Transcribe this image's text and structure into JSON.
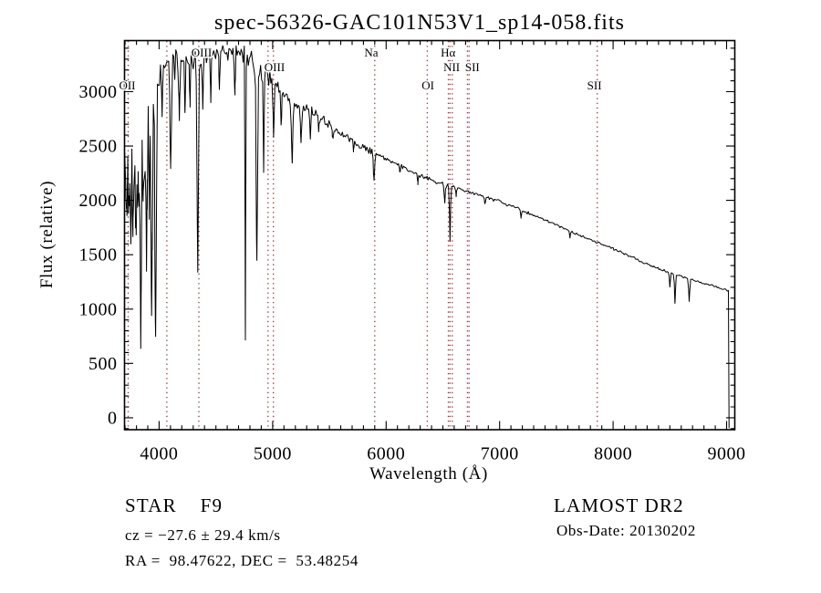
{
  "title": "spec-56326-GAC101N53V1_sp14-058.fits",
  "annotations": {
    "class_label": "STAR    F9",
    "cz": "cz = −27.6 ± 29.4 km/s",
    "radec": "RA =  98.47622, DEC =  53.48254",
    "survey": "LAMOST DR2",
    "obs_date": "Obs-Date: 20130202"
  },
  "chart_data": {
    "type": "line",
    "title": "spec-56326-GAC101N53V1_sp14-058.fits",
    "xlabel": "Wavelength (Å)",
    "ylabel": "Flux (relative)",
    "xlim": [
      3695,
      9072
    ],
    "ylim": [
      -110,
      3470
    ],
    "x_ticks": [
      4000,
      5000,
      6000,
      7000,
      8000,
      9000
    ],
    "y_ticks": [
      0,
      500,
      1000,
      1500,
      2000,
      2500,
      3000
    ],
    "x_minor_step": 100,
    "y_minor_step": 100,
    "grid": false,
    "line_color": "#000000",
    "marker_line_color": "#943232",
    "spectral_lines": [
      {
        "label": "OII",
        "row": 3,
        "wavelengths": [
          3727
        ],
        "label_at": 3719
      },
      {
        "label": "",
        "row": 0,
        "wavelengths": [
          4068
        ],
        "label_at": 4068
      },
      {
        "label": "OIII",
        "row": 1,
        "wavelengths": [
          4350
        ],
        "label_at": 4374
      },
      {
        "label": "OIII",
        "row": 2,
        "wavelengths": [
          4959,
          5007
        ],
        "label_at": 5017
      },
      {
        "label": "Na",
        "row": 1,
        "wavelengths": [
          5900
        ],
        "label_at": 5869
      },
      {
        "label": "OI",
        "row": 3,
        "wavelengths": [
          6363
        ],
        "label_at": 6368
      },
      {
        "label": "Hα",
        "row": 1,
        "wavelengths": [
          6563
        ],
        "label_at": 6546
      },
      {
        "label": "NII",
        "row": 2,
        "wavelengths": [
          6548,
          6583
        ],
        "label_at": 6577
      },
      {
        "label": "SII",
        "row": 2,
        "wavelengths": [
          6716,
          6731
        ],
        "label_at": 6760
      },
      {
        "label": "SII",
        "row": 3,
        "wavelengths": [
          7860
        ],
        "label_at": 7835
      }
    ],
    "continuum": [
      [
        3695,
        2420
      ],
      [
        3715,
        2280
      ],
      [
        3740,
        2300
      ],
      [
        3765,
        2280
      ],
      [
        3795,
        2400
      ],
      [
        3825,
        2520
      ],
      [
        3855,
        2620
      ],
      [
        3885,
        2730
      ],
      [
        3915,
        2840
      ],
      [
        3945,
        2920
      ],
      [
        3975,
        3020
      ],
      [
        4005,
        3130
      ],
      [
        4045,
        3230
      ],
      [
        4090,
        3280
      ],
      [
        4140,
        3300
      ],
      [
        4200,
        3295
      ],
      [
        4260,
        3300
      ],
      [
        4320,
        3305
      ],
      [
        4380,
        3325
      ],
      [
        4440,
        3345
      ],
      [
        4500,
        3360
      ],
      [
        4560,
        3370
      ],
      [
        4620,
        3368
      ],
      [
        4680,
        3352
      ],
      [
        4740,
        3330
      ],
      [
        4800,
        3300
      ],
      [
        4860,
        3258
      ],
      [
        4920,
        3195
      ],
      [
        4980,
        3115
      ],
      [
        5040,
        3035
      ],
      [
        5100,
        2975
      ],
      [
        5160,
        2925
      ],
      [
        5220,
        2885
      ],
      [
        5280,
        2852
      ],
      [
        5340,
        2812
      ],
      [
        5400,
        2772
      ],
      [
        5460,
        2722
      ],
      [
        5520,
        2678
      ],
      [
        5580,
        2632
      ],
      [
        5640,
        2592
      ],
      [
        5700,
        2548
      ],
      [
        5760,
        2508
      ],
      [
        5820,
        2472
      ],
      [
        5880,
        2438
      ],
      [
        5940,
        2408
      ],
      [
        6000,
        2378
      ],
      [
        6080,
        2338
      ],
      [
        6160,
        2298
      ],
      [
        6240,
        2258
      ],
      [
        6320,
        2218
      ],
      [
        6400,
        2188
      ],
      [
        6480,
        2162
      ],
      [
        6560,
        2138
      ],
      [
        6640,
        2108
      ],
      [
        6720,
        2082
      ],
      [
        6800,
        2052
      ],
      [
        6900,
        2022
      ],
      [
        7000,
        1988
      ],
      [
        7100,
        1948
      ],
      [
        7200,
        1905
      ],
      [
        7300,
        1862
      ],
      [
        7400,
        1818
      ],
      [
        7500,
        1772
      ],
      [
        7600,
        1728
      ],
      [
        7700,
        1682
      ],
      [
        7800,
        1640
      ],
      [
        7900,
        1598
      ],
      [
        8000,
        1556
      ],
      [
        8100,
        1508
      ],
      [
        8200,
        1462
      ],
      [
        8300,
        1416
      ],
      [
        8400,
        1372
      ],
      [
        8500,
        1336
      ],
      [
        8600,
        1300
      ],
      [
        8700,
        1266
      ],
      [
        8800,
        1236
      ],
      [
        8900,
        1206
      ],
      [
        9000,
        1176
      ],
      [
        9020,
        1168
      ]
    ],
    "absorption_features": [
      [
        3712,
        1750,
        5
      ],
      [
        3734,
        1850,
        5
      ],
      [
        3750,
        1600,
        5
      ],
      [
        3770,
        1800,
        5
      ],
      [
        3798,
        1700,
        6
      ],
      [
        3820,
        1950,
        5
      ],
      [
        3838,
        720,
        5
      ],
      [
        3860,
        1950,
        5
      ],
      [
        3889,
        1500,
        6
      ],
      [
        3912,
        2050,
        4
      ],
      [
        3934,
        900,
        6
      ],
      [
        3969,
        740,
        6
      ],
      [
        4026,
        2800,
        4
      ],
      [
        4102,
        2240,
        6
      ],
      [
        4178,
        2750,
        4
      ],
      [
        4227,
        2780,
        4
      ],
      [
        4272,
        2880,
        4
      ],
      [
        4340,
        1370,
        6
      ],
      [
        4385,
        2820,
        4
      ],
      [
        4455,
        2940,
        4
      ],
      [
        4531,
        3020,
        4
      ],
      [
        4668,
        2980,
        4
      ],
      [
        4760,
        720,
        2.6
      ],
      [
        4861,
        1410,
        6
      ],
      [
        4921,
        2300,
        4
      ],
      [
        5008,
        2580,
        4
      ],
      [
        5075,
        2680,
        4
      ],
      [
        5172,
        2350,
        6
      ],
      [
        5250,
        2520,
        4
      ],
      [
        5332,
        2580,
        4
      ],
      [
        5405,
        2630,
        4
      ],
      [
        5530,
        2560,
        4
      ],
      [
        5712,
        2460,
        4
      ],
      [
        5893,
        2170,
        5
      ],
      [
        6122,
        2240,
        3
      ],
      [
        6280,
        2160,
        3
      ],
      [
        6517,
        1960,
        3.5
      ],
      [
        6563,
        1610,
        3.5
      ],
      [
        6617,
        2040,
        3
      ],
      [
        6870,
        1965,
        4
      ],
      [
        7190,
        1845,
        4
      ],
      [
        7620,
        1660,
        4
      ],
      [
        8500,
        1200,
        3.5
      ],
      [
        8545,
        1055,
        4
      ],
      [
        8670,
        1070,
        4
      ]
    ],
    "noise_regions": [
      [
        3695,
        3790,
        320
      ],
      [
        3790,
        3935,
        275
      ],
      [
        3935,
        4025,
        215
      ],
      [
        4025,
        4180,
        130
      ],
      [
        4180,
        4990,
        112
      ],
      [
        4990,
        5500,
        64
      ],
      [
        5500,
        5910,
        46
      ],
      [
        5910,
        6560,
        26
      ],
      [
        6560,
        7600,
        17
      ],
      [
        7600,
        8450,
        14
      ],
      [
        8450,
        9025,
        12
      ]
    ],
    "blue_noise_boost": {
      "below": 4160,
      "factor": 1.8
    },
    "noise_seed": 20130202,
    "sample_step": 9,
    "end_drop": {
      "wavelength": 9021,
      "flux": -95
    }
  }
}
